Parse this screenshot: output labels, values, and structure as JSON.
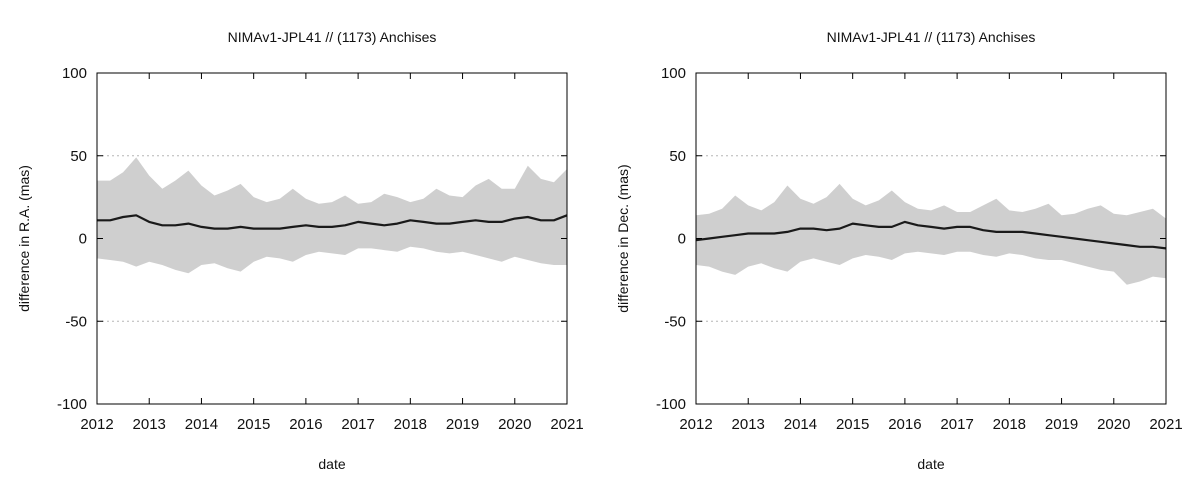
{
  "chart_data": [
    {
      "type": "line",
      "title": "NIMAv1-JPL41 // (1173) Anchises",
      "xlabel": "date",
      "ylabel": "difference in R.A. (mas)",
      "xlim": [
        2012,
        2021
      ],
      "ylim": [
        -100,
        100
      ],
      "xticks": [
        "2012",
        "2013",
        "2014",
        "2015",
        "2016",
        "2017",
        "2018",
        "2019",
        "2020",
        "2021"
      ],
      "yticks": [
        "-100",
        "-50",
        "0",
        "50",
        "100"
      ],
      "grid": "horizontal dotted",
      "band_color": "#cfcfcf",
      "line_color": "#1a1a1a",
      "series": [
        {
          "name": "mean difference",
          "x": [
            2012.0,
            2012.25,
            2012.5,
            2012.75,
            2013.0,
            2013.25,
            2013.5,
            2013.75,
            2014.0,
            2014.25,
            2014.5,
            2014.75,
            2015.0,
            2015.25,
            2015.5,
            2015.75,
            2016.0,
            2016.25,
            2016.5,
            2016.75,
            2017.0,
            2017.25,
            2017.5,
            2017.75,
            2018.0,
            2018.25,
            2018.5,
            2018.75,
            2019.0,
            2019.25,
            2019.5,
            2019.75,
            2020.0,
            2020.25,
            2020.5,
            2020.75,
            2021.0
          ],
          "y": [
            11,
            11,
            13,
            14,
            10,
            8,
            8,
            9,
            7,
            6,
            6,
            7,
            6,
            6,
            6,
            7,
            8,
            7,
            7,
            8,
            10,
            9,
            8,
            9,
            11,
            10,
            9,
            9,
            10,
            11,
            10,
            10,
            12,
            13,
            11,
            11,
            14
          ]
        },
        {
          "name": "upper envelope",
          "x": [
            2012.0,
            2012.25,
            2012.5,
            2012.75,
            2013.0,
            2013.25,
            2013.5,
            2013.75,
            2014.0,
            2014.25,
            2014.5,
            2014.75,
            2015.0,
            2015.25,
            2015.5,
            2015.75,
            2016.0,
            2016.25,
            2016.5,
            2016.75,
            2017.0,
            2017.25,
            2017.5,
            2017.75,
            2018.0,
            2018.25,
            2018.5,
            2018.75,
            2019.0,
            2019.25,
            2019.5,
            2019.75,
            2020.0,
            2020.25,
            2020.5,
            2020.75,
            2021.0
          ],
          "y": [
            35,
            35,
            40,
            49,
            38,
            30,
            35,
            41,
            32,
            26,
            29,
            33,
            25,
            22,
            24,
            30,
            24,
            21,
            22,
            26,
            21,
            22,
            27,
            25,
            22,
            24,
            30,
            26,
            25,
            32,
            36,
            30,
            30,
            44,
            36,
            34,
            42
          ]
        },
        {
          "name": "lower envelope",
          "x": [
            2012.0,
            2012.25,
            2012.5,
            2012.75,
            2013.0,
            2013.25,
            2013.5,
            2013.75,
            2014.0,
            2014.25,
            2014.5,
            2014.75,
            2015.0,
            2015.25,
            2015.5,
            2015.75,
            2016.0,
            2016.25,
            2016.5,
            2016.75,
            2017.0,
            2017.25,
            2017.5,
            2017.75,
            2018.0,
            2018.25,
            2018.5,
            2018.75,
            2019.0,
            2019.25,
            2019.5,
            2019.75,
            2020.0,
            2020.25,
            2020.5,
            2020.75,
            2021.0
          ],
          "y": [
            -12,
            -13,
            -14,
            -17,
            -14,
            -16,
            -19,
            -21,
            -16,
            -15,
            -18,
            -20,
            -14,
            -11,
            -12,
            -14,
            -10,
            -8,
            -9,
            -10,
            -6,
            -6,
            -7,
            -8,
            -5,
            -6,
            -8,
            -9,
            -8,
            -10,
            -12,
            -14,
            -11,
            -13,
            -15,
            -16,
            -16
          ]
        }
      ]
    },
    {
      "type": "line",
      "title": "NIMAv1-JPL41 // (1173) Anchises",
      "xlabel": "date",
      "ylabel": "difference in Dec. (mas)",
      "xlim": [
        2012,
        2021
      ],
      "ylim": [
        -100,
        100
      ],
      "xticks": [
        "2012",
        "2013",
        "2014",
        "2015",
        "2016",
        "2017",
        "2018",
        "2019",
        "2020",
        "2021"
      ],
      "yticks": [
        "-100",
        "-50",
        "0",
        "50",
        "100"
      ],
      "grid": "horizontal dotted",
      "band_color": "#cfcfcf",
      "line_color": "#1a1a1a",
      "series": [
        {
          "name": "mean difference",
          "x": [
            2012.0,
            2012.25,
            2012.5,
            2012.75,
            2013.0,
            2013.25,
            2013.5,
            2013.75,
            2014.0,
            2014.25,
            2014.5,
            2014.75,
            2015.0,
            2015.25,
            2015.5,
            2015.75,
            2016.0,
            2016.25,
            2016.5,
            2016.75,
            2017.0,
            2017.25,
            2017.5,
            2017.75,
            2018.0,
            2018.25,
            2018.5,
            2018.75,
            2019.0,
            2019.25,
            2019.5,
            2019.75,
            2020.0,
            2020.25,
            2020.5,
            2020.75,
            2021.0
          ],
          "y": [
            -1,
            0,
            1,
            2,
            3,
            3,
            3,
            4,
            6,
            6,
            5,
            6,
            9,
            8,
            7,
            7,
            10,
            8,
            7,
            6,
            7,
            7,
            5,
            4,
            4,
            4,
            3,
            2,
            1,
            0,
            -1,
            -2,
            -3,
            -4,
            -5,
            -5,
            -6
          ]
        },
        {
          "name": "upper envelope",
          "x": [
            2012.0,
            2012.25,
            2012.5,
            2012.75,
            2013.0,
            2013.25,
            2013.5,
            2013.75,
            2014.0,
            2014.25,
            2014.5,
            2014.75,
            2015.0,
            2015.25,
            2015.5,
            2015.75,
            2016.0,
            2016.25,
            2016.5,
            2016.75,
            2017.0,
            2017.25,
            2017.5,
            2017.75,
            2018.0,
            2018.25,
            2018.5,
            2018.75,
            2019.0,
            2019.25,
            2019.5,
            2019.75,
            2020.0,
            2020.25,
            2020.5,
            2020.75,
            2021.0
          ],
          "y": [
            14,
            15,
            18,
            26,
            20,
            17,
            22,
            32,
            24,
            21,
            25,
            33,
            24,
            20,
            23,
            29,
            22,
            18,
            17,
            20,
            16,
            16,
            20,
            24,
            17,
            16,
            18,
            21,
            14,
            15,
            18,
            20,
            15,
            14,
            16,
            18,
            12
          ]
        },
        {
          "name": "lower envelope",
          "x": [
            2012.0,
            2012.25,
            2012.5,
            2012.75,
            2013.0,
            2013.25,
            2013.5,
            2013.75,
            2014.0,
            2014.25,
            2014.5,
            2014.75,
            2015.0,
            2015.25,
            2015.5,
            2015.75,
            2016.0,
            2016.25,
            2016.5,
            2016.75,
            2017.0,
            2017.25,
            2017.5,
            2017.75,
            2018.0,
            2018.25,
            2018.5,
            2018.75,
            2019.0,
            2019.25,
            2019.5,
            2019.75,
            2020.0,
            2020.25,
            2020.5,
            2020.75,
            2021.0
          ],
          "y": [
            -16,
            -17,
            -20,
            -22,
            -17,
            -15,
            -18,
            -20,
            -14,
            -12,
            -14,
            -16,
            -12,
            -10,
            -11,
            -13,
            -9,
            -8,
            -9,
            -10,
            -8,
            -8,
            -10,
            -11,
            -9,
            -10,
            -12,
            -13,
            -13,
            -15,
            -17,
            -19,
            -20,
            -28,
            -26,
            -23,
            -24
          ]
        }
      ]
    }
  ]
}
